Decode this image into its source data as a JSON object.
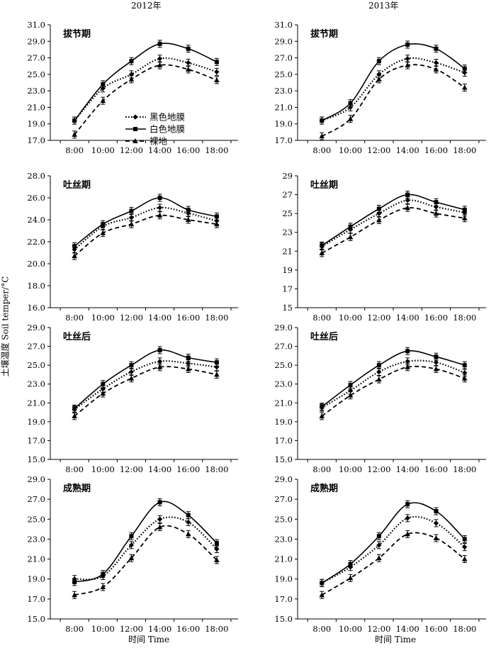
{
  "figure": {
    "col_titles": [
      "2012年",
      "2013年"
    ],
    "ylabel": "土壤温度 Soil temper/°C",
    "xlabel": "时间 Time"
  },
  "legend": {
    "entries": [
      {
        "label": "黑色地膜",
        "style": "dotted",
        "marker": "diamond"
      },
      {
        "label": "白色地膜",
        "style": "solid",
        "marker": "square"
      },
      {
        "label": "裸地",
        "style": "dashed",
        "marker": "triangle"
      }
    ]
  },
  "chart_data": [
    {
      "type": "line",
      "panel": "2012-拔节期",
      "stage_label": "拔节期",
      "x": [
        "8:00",
        "10:00",
        "12:00",
        "14:00",
        "16:00",
        "18:00"
      ],
      "ylim": [
        17.0,
        31.0
      ],
      "yticks": [
        "17.0",
        "19.0",
        "21.0",
        "23.0",
        "25.0",
        "27.0",
        "29.0",
        "31.0"
      ],
      "legend": true,
      "series": [
        {
          "name": "黑色地膜",
          "values": [
            19.4,
            23.3,
            25.0,
            26.9,
            26.4,
            25.3
          ]
        },
        {
          "name": "白色地膜",
          "values": [
            19.4,
            23.8,
            26.6,
            28.7,
            28.1,
            26.5
          ]
        },
        {
          "name": "裸地",
          "values": [
            17.7,
            21.8,
            24.4,
            26.1,
            25.6,
            24.3
          ]
        }
      ]
    },
    {
      "type": "line",
      "panel": "2013-拔节期",
      "stage_label": "拔节期",
      "x": [
        "8:00",
        "10:00",
        "12:00",
        "14:00",
        "16:00",
        "18:00"
      ],
      "ylim": [
        17.0,
        31.0
      ],
      "yticks": [
        "17.0",
        "19.0",
        "21.0",
        "23.0",
        "25.0",
        "27.0",
        "29.0",
        "31.0"
      ],
      "series": [
        {
          "name": "黑色地膜",
          "values": [
            19.4,
            21.0,
            25.0,
            26.9,
            26.4,
            25.2
          ]
        },
        {
          "name": "白色地膜",
          "values": [
            19.4,
            21.5,
            26.6,
            28.6,
            28.1,
            25.7
          ]
        },
        {
          "name": "裸地",
          "values": [
            17.5,
            19.6,
            24.4,
            26.1,
            25.6,
            23.4
          ]
        }
      ]
    },
    {
      "type": "line",
      "panel": "2012-吐丝期",
      "stage_label": "吐丝期",
      "x": [
        "8:00",
        "10:00",
        "12:00",
        "14:00",
        "16:00",
        "18:00"
      ],
      "ylim": [
        16.0,
        28.0
      ],
      "yticks": [
        "16.0",
        "18.0",
        "20.0",
        "22.0",
        "24.0",
        "26.0",
        "28.0"
      ],
      "series": [
        {
          "name": "黑色地膜",
          "values": [
            21.3,
            23.4,
            24.2,
            25.1,
            24.6,
            23.9
          ]
        },
        {
          "name": "白色地膜",
          "values": [
            21.6,
            23.6,
            24.8,
            26.0,
            24.9,
            24.3
          ]
        },
        {
          "name": "裸地",
          "values": [
            20.7,
            22.8,
            23.6,
            24.4,
            24.0,
            23.6
          ]
        }
      ]
    },
    {
      "type": "line",
      "panel": "2013-吐丝期",
      "stage_label": "吐丝期",
      "x": [
        "8:00",
        "10:00",
        "12:00",
        "14:00",
        "16:00",
        "18:00"
      ],
      "ylim": [
        15,
        29
      ],
      "yticks": [
        "15",
        "17",
        "19",
        "21",
        "23",
        "25",
        "27",
        "29"
      ],
      "series": [
        {
          "name": "黑色地膜",
          "values": [
            21.5,
            23.3,
            25.0,
            26.4,
            25.7,
            25.1
          ]
        },
        {
          "name": "白色地膜",
          "values": [
            21.6,
            23.6,
            25.5,
            27.0,
            26.2,
            25.4
          ]
        },
        {
          "name": "裸地",
          "values": [
            20.8,
            22.5,
            24.3,
            25.6,
            25.0,
            24.5
          ]
        }
      ]
    },
    {
      "type": "line",
      "panel": "2012-吐丝后",
      "stage_label": "吐丝后",
      "x": [
        "8:00",
        "10:00",
        "12:00",
        "14:00",
        "16:00",
        "18:00"
      ],
      "ylim": [
        15.0,
        29.0
      ],
      "yticks": [
        "15.0",
        "17.0",
        "19.0",
        "21.0",
        "23.0",
        "25.0",
        "27.0",
        "29.0"
      ],
      "series": [
        {
          "name": "黑色地膜",
          "values": [
            20.3,
            22.5,
            24.3,
            25.4,
            25.2,
            24.8
          ]
        },
        {
          "name": "白色地膜",
          "values": [
            20.4,
            23.0,
            25.0,
            26.6,
            25.8,
            25.3
          ]
        },
        {
          "name": "裸地",
          "values": [
            19.6,
            22.0,
            23.6,
            24.8,
            24.6,
            24.0
          ]
        }
      ]
    },
    {
      "type": "line",
      "panel": "2013-吐丝后",
      "stage_label": "吐丝后",
      "x": [
        "8:00",
        "10:00",
        "12:00",
        "14:00",
        "16:00",
        "18:00"
      ],
      "ylim": [
        15.0,
        29.0
      ],
      "yticks": [
        "15.0",
        "17.0",
        "19.0",
        "21.0",
        "23.0",
        "25.0",
        "27.0",
        "29.0"
      ],
      "series": [
        {
          "name": "黑色地膜",
          "values": [
            20.5,
            22.3,
            24.3,
            25.4,
            25.3,
            24.2
          ]
        },
        {
          "name": "白色地膜",
          "values": [
            20.6,
            22.9,
            25.0,
            26.5,
            25.9,
            25.0
          ]
        },
        {
          "name": "裸地",
          "values": [
            19.6,
            21.8,
            23.5,
            24.8,
            24.6,
            23.6
          ]
        }
      ]
    },
    {
      "type": "line",
      "panel": "2012-成熟期",
      "stage_label": "成熟期",
      "x": [
        "8:00",
        "10:00",
        "12:00",
        "14:00",
        "16:00",
        "18:00"
      ],
      "ylim": [
        15.0,
        29.0
      ],
      "yticks": [
        "15.0",
        "17.0",
        "19.0",
        "21.0",
        "23.0",
        "25.0",
        "27.0",
        "29.0"
      ],
      "series": [
        {
          "name": "黑色地膜",
          "values": [
            19.0,
            19.3,
            22.4,
            25.0,
            24.7,
            22.0
          ]
        },
        {
          "name": "白色地膜",
          "values": [
            18.7,
            19.5,
            23.3,
            26.7,
            25.4,
            22.6
          ]
        },
        {
          "name": "裸地",
          "values": [
            17.4,
            18.2,
            21.1,
            24.2,
            23.5,
            20.9
          ]
        }
      ]
    },
    {
      "type": "line",
      "panel": "2013-成熟期",
      "stage_label": "成熟期",
      "x": [
        "8:00",
        "10:00",
        "12:00",
        "14:00",
        "16:00",
        "18:00"
      ],
      "ylim": [
        15.0,
        29.0
      ],
      "yticks": [
        "15.0",
        "17.0",
        "19.0",
        "21.0",
        "23.0",
        "25.0",
        "27.0",
        "29.0"
      ],
      "series": [
        {
          "name": "黑色地膜",
          "values": [
            18.6,
            20.2,
            22.4,
            25.1,
            24.6,
            22.2
          ]
        },
        {
          "name": "白色地膜",
          "values": [
            18.6,
            20.5,
            23.3,
            26.5,
            25.8,
            23.0
          ]
        },
        {
          "name": "裸地",
          "values": [
            17.4,
            19.1,
            21.1,
            23.5,
            23.1,
            21.0
          ]
        }
      ]
    }
  ]
}
